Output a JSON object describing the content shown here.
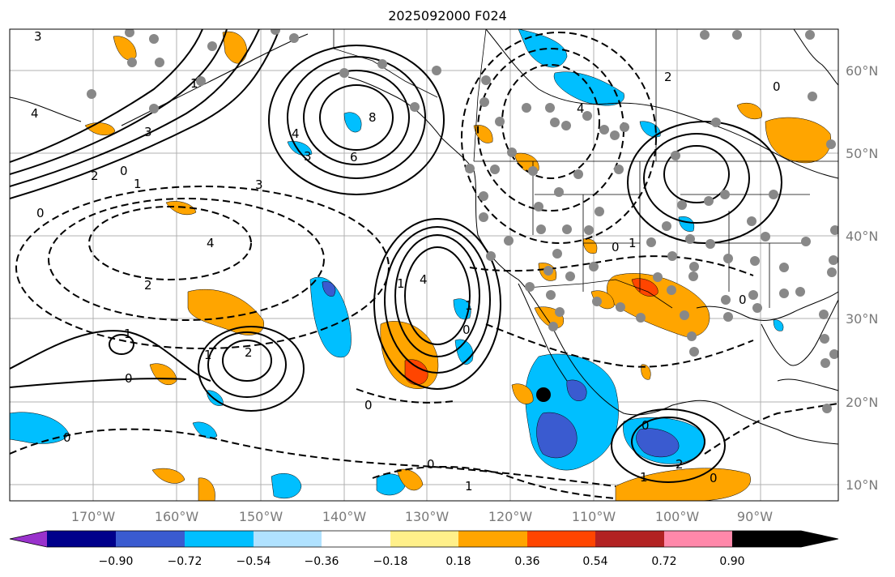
{
  "title": "2025092000 F024",
  "map": {
    "lon_labels": [
      "170°W",
      "160°W",
      "150°W",
      "140°W",
      "130°W",
      "120°W",
      "110°W",
      "100°W",
      "90°W"
    ],
    "lat_labels": [
      "60°N",
      "50°N",
      "40°N",
      "30°N",
      "20°N",
      "10°N"
    ],
    "contour_labels": [
      "3",
      "4",
      "3",
      "2",
      "0",
      "1",
      "0",
      "4",
      "6",
      "8",
      "3",
      "1",
      "4",
      "2",
      "1",
      "0",
      "1",
      "2",
      "1",
      "0",
      "1",
      "3",
      "4",
      "0",
      "0",
      "0",
      "1",
      "2",
      "0",
      "0",
      "1",
      "0",
      "2",
      "1",
      "4",
      "0",
      "0"
    ]
  },
  "colorbar": {
    "tick_labels": [
      "−0.90",
      "−0.72",
      "−0.54",
      "−0.36",
      "−0.18",
      "0.18",
      "0.36",
      "0.54",
      "0.72",
      "0.90"
    ],
    "colors": [
      "#9932cc",
      "#00008b",
      "#3a5bd0",
      "#00bfff",
      "#b0e2ff",
      "#ffffff",
      "#fff08a",
      "#ffa500",
      "#ff4500",
      "#b22222",
      "#ff88aa"
    ]
  }
}
